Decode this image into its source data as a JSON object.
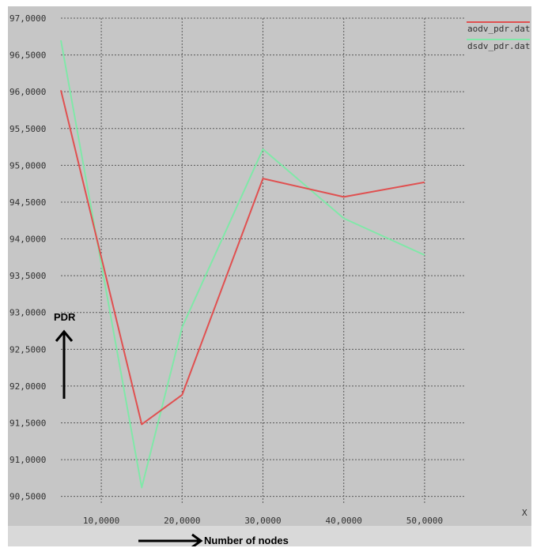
{
  "chart_data": {
    "type": "line",
    "xlim": [
      5000,
      55000
    ],
    "ylim": [
      90.4,
      97.0
    ],
    "x_ticks": [
      "10,0000",
      "20,0000",
      "30,0000",
      "40,0000",
      "50,0000"
    ],
    "x_tick_values": [
      10000,
      20000,
      30000,
      40000,
      50000
    ],
    "y_ticks": [
      "97,0000",
      "96,5000",
      "96,0000",
      "95,5000",
      "95,0000",
      "94,5000",
      "94,0000",
      "93,5000",
      "93,0000",
      "92,5000",
      "92,0000",
      "91,5000",
      "91,0000",
      "90,5000"
    ],
    "y_tick_values": [
      97.0,
      96.5,
      96.0,
      95.5,
      95.0,
      94.5,
      94.0,
      93.5,
      93.0,
      92.5,
      92.0,
      91.5,
      91.0,
      90.5
    ],
    "grid": true,
    "legend_position": "top-right",
    "series": [
      {
        "name": "aodv_pdr.dat",
        "color": "#e05050",
        "x": [
          5000,
          15000,
          20000,
          30000,
          40000,
          50000
        ],
        "y": [
          96.02,
          91.48,
          91.88,
          94.82,
          94.57,
          94.77
        ]
      },
      {
        "name": "dsdv_pdr.dat",
        "color": "#80e8a8",
        "x": [
          5000,
          15000,
          20000,
          30000,
          40000,
          50000
        ],
        "y": [
          96.7,
          90.62,
          92.8,
          95.22,
          94.28,
          93.78
        ]
      }
    ],
    "x_axis_marker": "X",
    "ylabel": "PDR",
    "xlabel": "Number of nodes"
  }
}
